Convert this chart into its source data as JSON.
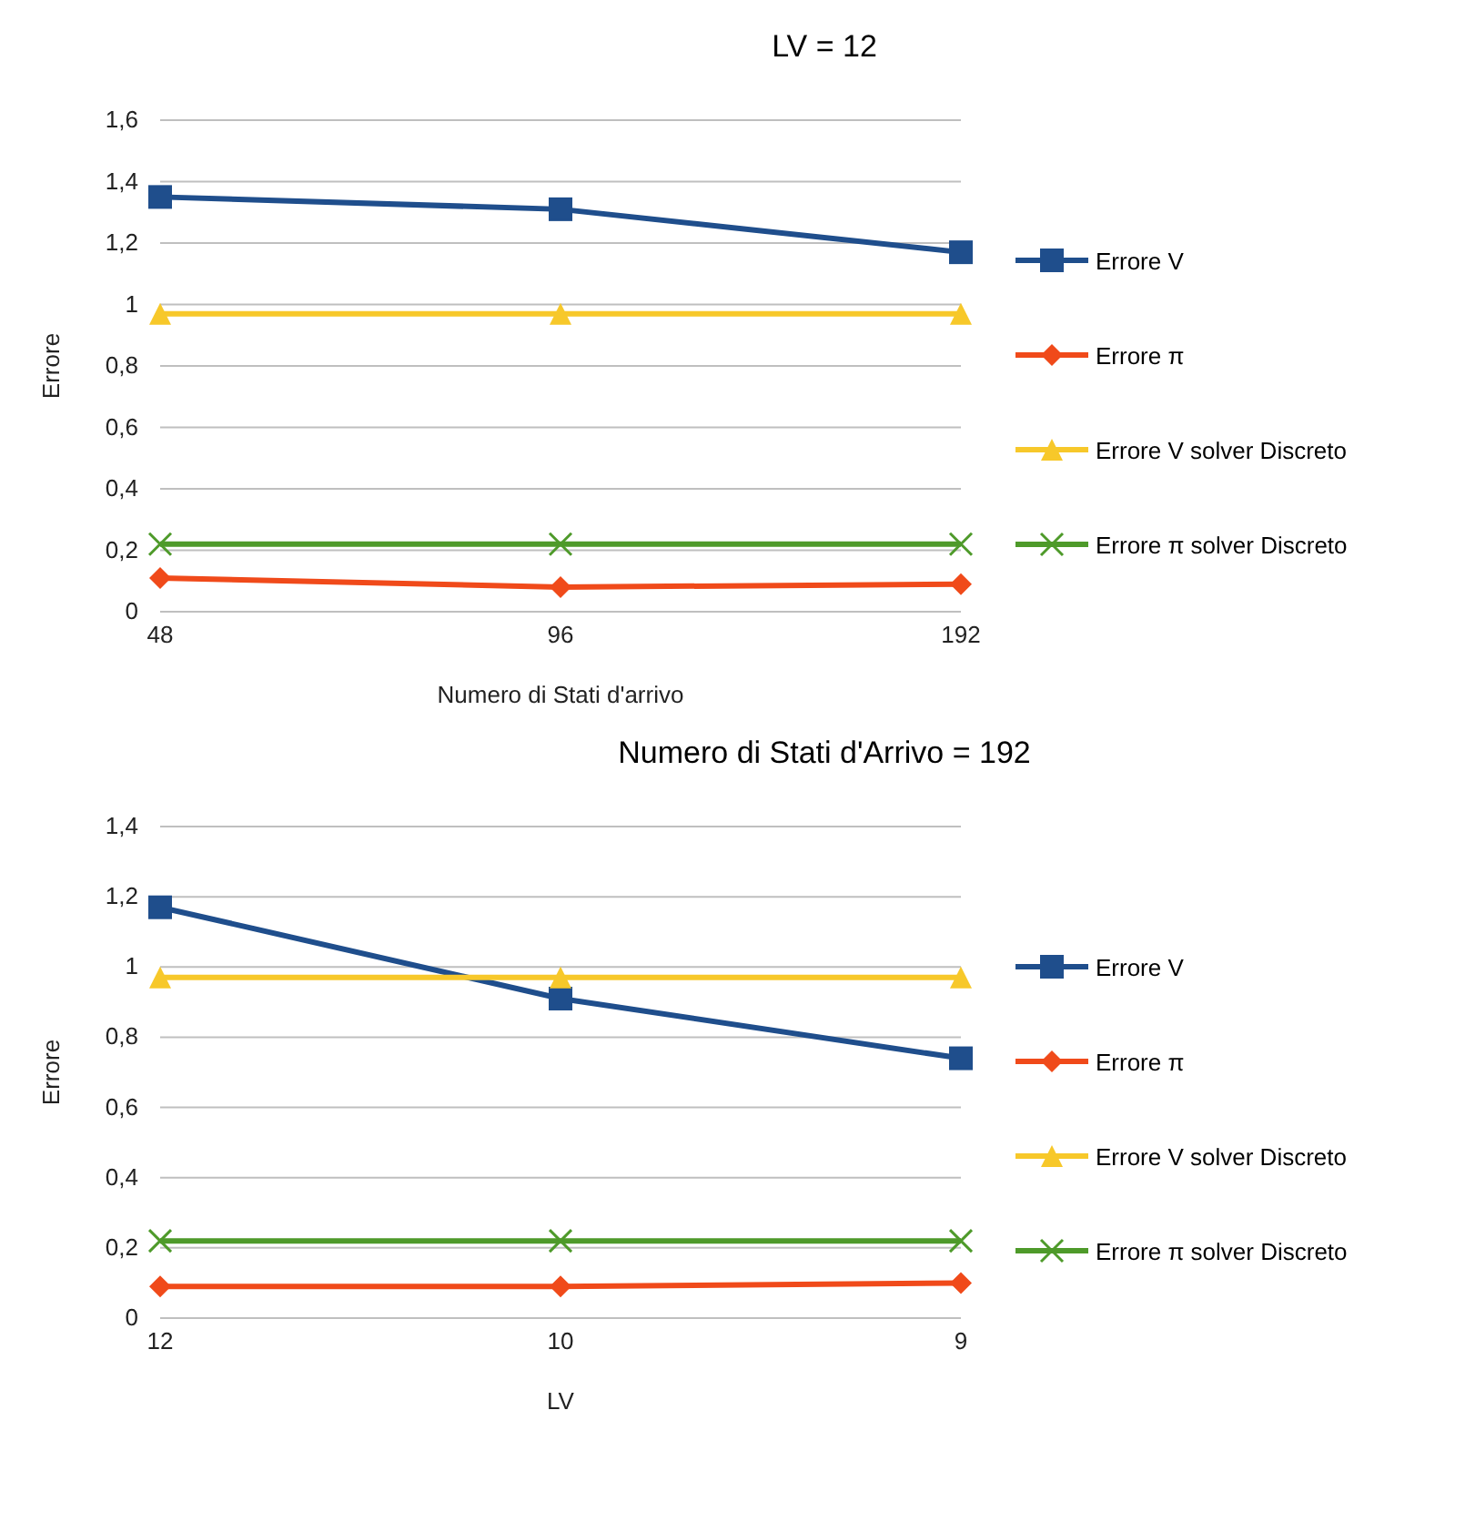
{
  "chart_data": [
    {
      "type": "line",
      "title": "LV = 12",
      "xlabel": "Numero di Stati d'arrivo",
      "ylabel": "Errore",
      "categories": [
        "48",
        "96",
        "192"
      ],
      "ylim": [
        0,
        1.6
      ],
      "yticks": [
        {
          "value": 0,
          "label": "0"
        },
        {
          "value": 0.2,
          "label": "0,2"
        },
        {
          "value": 0.4,
          "label": "0,4"
        },
        {
          "value": 0.6,
          "label": "0,6"
        },
        {
          "value": 0.8,
          "label": "0,8"
        },
        {
          "value": 1,
          "label": "1"
        },
        {
          "value": 1.2,
          "label": "1,2"
        },
        {
          "value": 1.4,
          "label": "1,4"
        },
        {
          "value": 1.6,
          "label": "1,6"
        }
      ],
      "grid": "y",
      "legend": "right",
      "series": [
        {
          "name": "Errore V",
          "color": "#1f4e8c",
          "marker": "square",
          "values": [
            1.35,
            1.31,
            1.17
          ]
        },
        {
          "name": "Errore π",
          "color": "#f04a1a",
          "marker": "diamond",
          "values": [
            0.11,
            0.08,
            0.09
          ]
        },
        {
          "name": "Errore V solver Discreto",
          "color": "#f7c82a",
          "marker": "triangle",
          "values": [
            0.97,
            0.97,
            0.97
          ]
        },
        {
          "name": "Errore π solver Discreto",
          "color": "#4e9a2a",
          "marker": "cross",
          "values": [
            0.22,
            0.22,
            0.22
          ]
        }
      ]
    },
    {
      "type": "line",
      "title": "Numero di Stati d'Arrivo = 192",
      "xlabel": "LV",
      "ylabel": "Errore",
      "categories": [
        "12",
        "10",
        "9"
      ],
      "ylim": [
        0,
        1.4
      ],
      "yticks": [
        {
          "value": 0,
          "label": "0"
        },
        {
          "value": 0.2,
          "label": "0,2"
        },
        {
          "value": 0.4,
          "label": "0,4"
        },
        {
          "value": 0.6,
          "label": "0,6"
        },
        {
          "value": 0.8,
          "label": "0,8"
        },
        {
          "value": 1,
          "label": "1"
        },
        {
          "value": 1.2,
          "label": "1,2"
        },
        {
          "value": 1.4,
          "label": "1,4"
        }
      ],
      "grid": "y",
      "legend": "right",
      "series": [
        {
          "name": "Errore V",
          "color": "#1f4e8c",
          "marker": "square",
          "values": [
            1.17,
            0.91,
            0.74
          ]
        },
        {
          "name": "Errore π",
          "color": "#f04a1a",
          "marker": "diamond",
          "values": [
            0.09,
            0.09,
            0.1
          ]
        },
        {
          "name": "Errore V solver Discreto",
          "color": "#f7c82a",
          "marker": "triangle",
          "values": [
            0.97,
            0.97,
            0.97
          ]
        },
        {
          "name": "Errore π solver Discreto",
          "color": "#4e9a2a",
          "marker": "cross",
          "values": [
            0.22,
            0.22,
            0.22
          ]
        }
      ]
    }
  ]
}
